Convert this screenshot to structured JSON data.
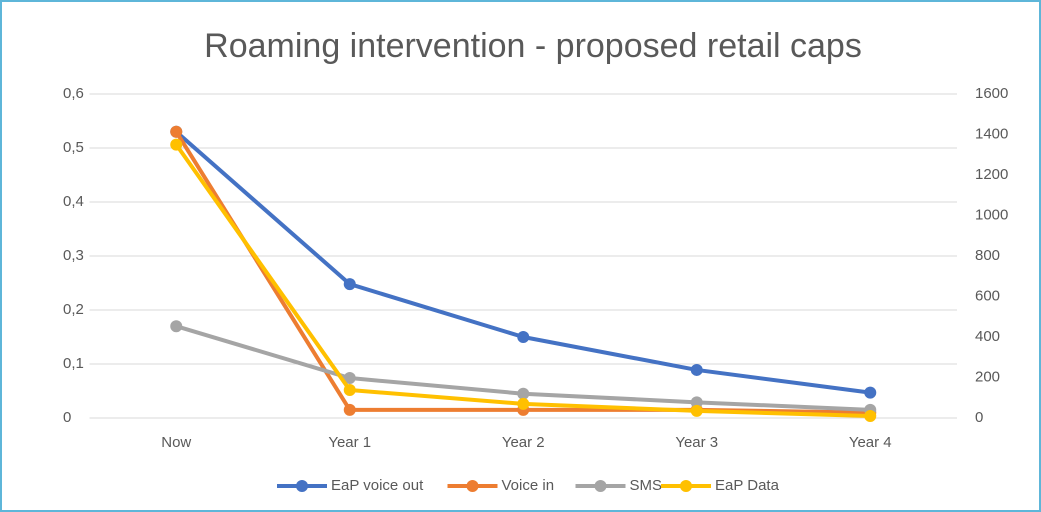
{
  "chart_data": {
    "type": "line",
    "title": "Roaming intervention - proposed retail caps",
    "categories": [
      "Now",
      "Year 1",
      "Year 2",
      "Year 3",
      "Year 4"
    ],
    "series": [
      {
        "name": "EaP voice out",
        "color": "#4472c4",
        "values": [
          0.53,
          0.248,
          0.15,
          0.089,
          0.047
        ]
      },
      {
        "name": "Voice in",
        "color": "#ed7d31",
        "values": [
          0.53,
          0.015,
          0.015,
          0.015,
          0.01
        ]
      },
      {
        "name": "SMS",
        "color": "#a5a5a5",
        "values": [
          0.17,
          0.074,
          0.045,
          0.029,
          0.015
        ]
      },
      {
        "name": "EaP Data",
        "color": "#ffc000",
        "axis": "y2",
        "values": [
          1350,
          138,
          70,
          35,
          10
        ]
      }
    ],
    "ylim": [
      0,
      0.6
    ],
    "yticks": [
      0,
      {
        "value": 0.1,
        "label": "0,1"
      },
      {
        "value": 0.2,
        "label": "0,2"
      },
      {
        "value": 0.3,
        "label": "0,3"
      },
      {
        "value": 0.4,
        "label": "0,4"
      },
      {
        "value": 0.5,
        "label": "0,5"
      },
      {
        "value": 0.6,
        "label": "0,6"
      }
    ],
    "y2lim": [
      0,
      1600
    ],
    "y2ticks": [
      0,
      200,
      400,
      600,
      800,
      1000,
      1200,
      1400,
      1600
    ],
    "grid": true,
    "legend": "bottom"
  }
}
